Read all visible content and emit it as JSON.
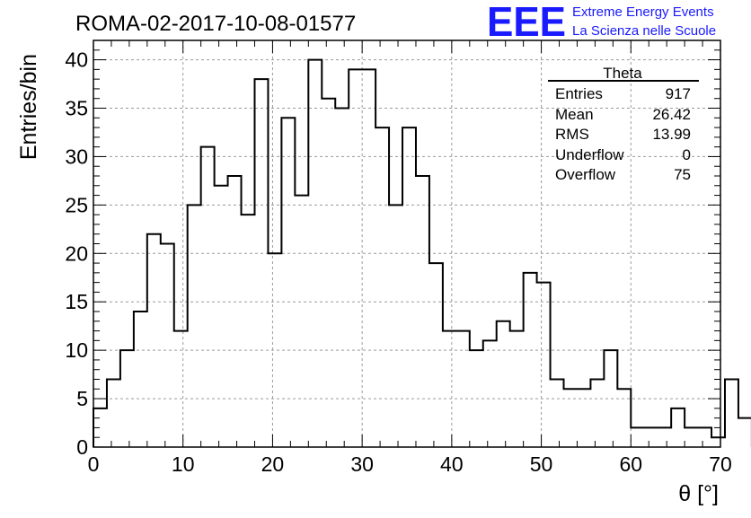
{
  "chart_data": {
    "type": "bar",
    "title": "ROMA-02-2017-10-08-01577",
    "xlabel": "θ [°]",
    "ylabel": "Entries/bin",
    "xlim": [
      0,
      70
    ],
    "ylim": [
      0,
      42
    ],
    "x_ticks": [
      "0",
      "10",
      "20",
      "30",
      "40",
      "50",
      "60",
      "70"
    ],
    "y_ticks": [
      "0",
      "5",
      "10",
      "15",
      "20",
      "25",
      "30",
      "35",
      "40"
    ],
    "grid": true,
    "bin_width": 1.5,
    "bin_edges_start": 0,
    "values": [
      4,
      7,
      10,
      14,
      22,
      21,
      12,
      25,
      31,
      27,
      28,
      24,
      38,
      20,
      34,
      26,
      40,
      36,
      35,
      39,
      39,
      33,
      25,
      33,
      28,
      19,
      12,
      12,
      10,
      11,
      13,
      12,
      18,
      17,
      7,
      6,
      6,
      7,
      10,
      6,
      2,
      2,
      2,
      4,
      2,
      2,
      1,
      7,
      3
    ],
    "stats": {
      "title": "Theta",
      "rows": [
        {
          "label": "Entries",
          "value": "917"
        },
        {
          "label": "Mean",
          "value": "26.42"
        },
        {
          "label": "RMS",
          "value": "13.99"
        },
        {
          "label": "Underflow",
          "value": "0"
        },
        {
          "label": "Overflow",
          "value": "75"
        }
      ]
    }
  },
  "logo": {
    "mark": "EEE",
    "line1": "Extreme Energy Events",
    "line2": "La Scienza nelle Scuole",
    "color": "#1a1aff"
  },
  "colors": {
    "grid": "#9a9a9a",
    "histogram": "#000000",
    "axis": "#000000"
  }
}
